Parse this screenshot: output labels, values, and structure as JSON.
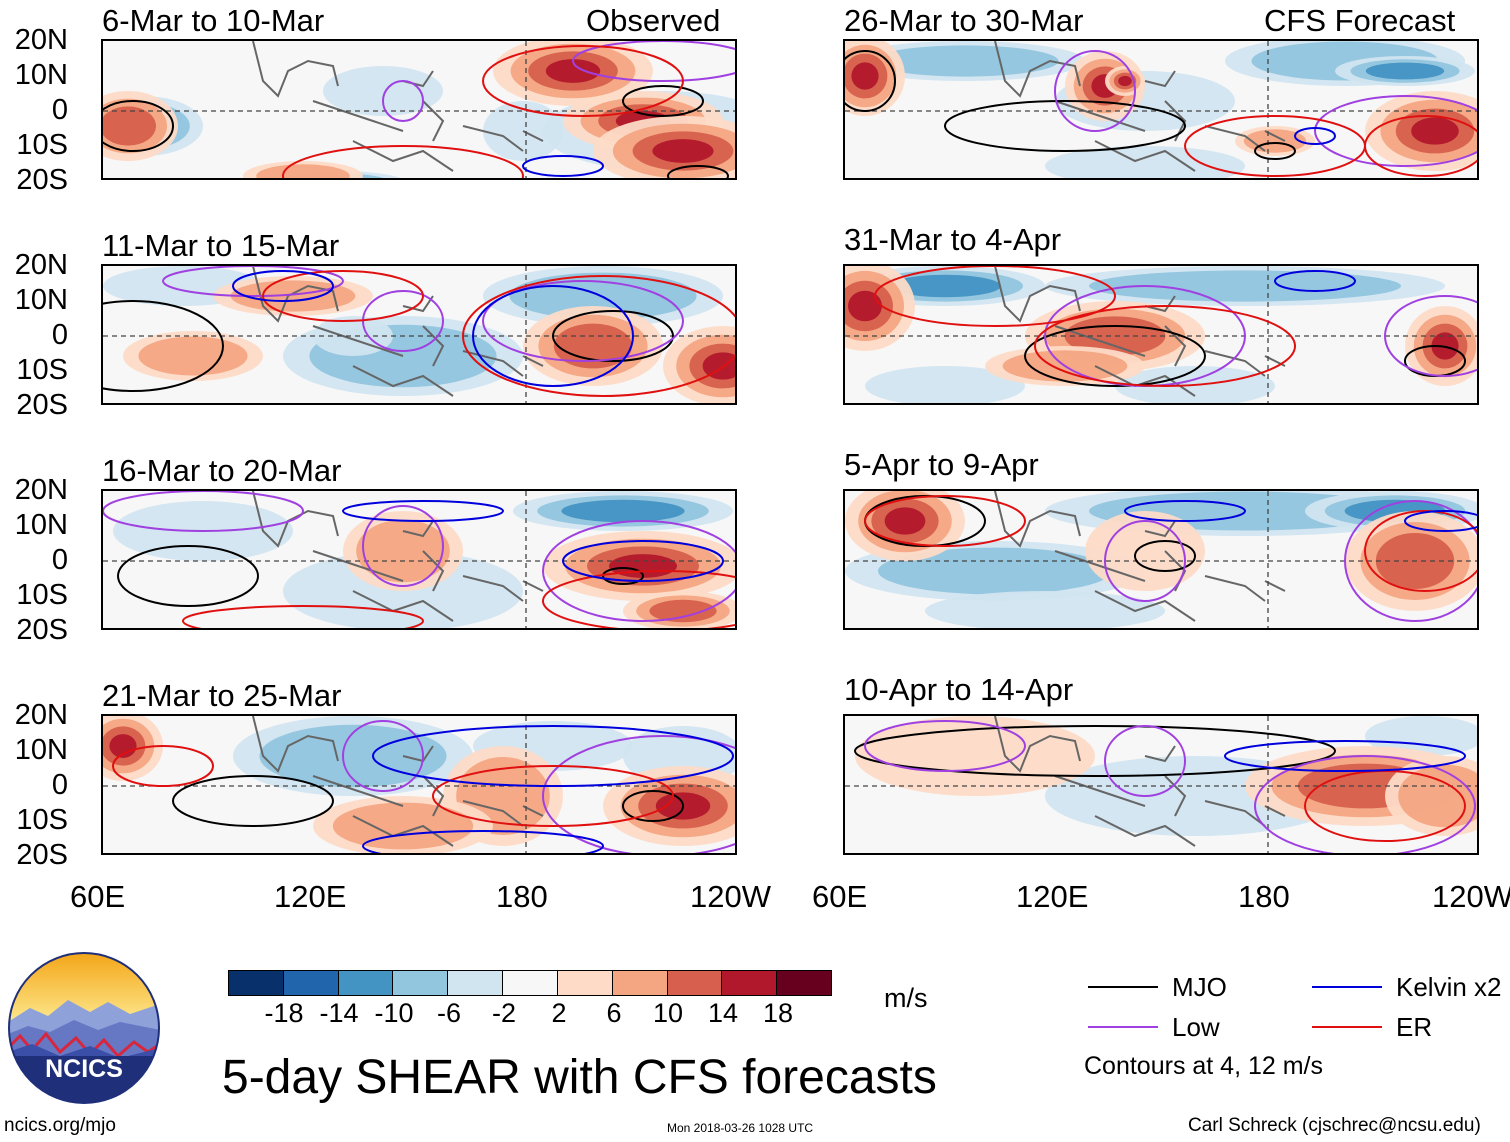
{
  "left_header": "Observed",
  "right_header": "CFS Forecast",
  "observed_panels": [
    {
      "title": "6-Mar to 10-Mar"
    },
    {
      "title": "11-Mar to 15-Mar"
    },
    {
      "title": "16-Mar to 20-Mar"
    },
    {
      "title": "21-Mar to 25-Mar"
    }
  ],
  "forecast_panels": [
    {
      "title": "26-Mar to 30-Mar"
    },
    {
      "title": "31-Mar to 4-Apr"
    },
    {
      "title": "5-Apr to 9-Apr"
    },
    {
      "title": "10-Apr to 14-Apr"
    }
  ],
  "lat_labels": [
    "20N",
    "10N",
    "0",
    "10S",
    "20S"
  ],
  "lon_labels": [
    "60E",
    "120E",
    "180",
    "120W"
  ],
  "colorbar": {
    "colors": [
      "#08306b",
      "#2166ac",
      "#4393c3",
      "#92c5de",
      "#d1e5f0",
      "#f7f7f7",
      "#fddbc7",
      "#f4a582",
      "#d6604d",
      "#b2182b",
      "#67001f"
    ],
    "labels": [
      "-18",
      "-14",
      "-10",
      "-6",
      "-2",
      "2",
      "6",
      "10",
      "14",
      "18"
    ],
    "units": "m/s"
  },
  "legend": {
    "items": [
      {
        "label": "MJO",
        "color": "#000000"
      },
      {
        "label": "Kelvin x2",
        "color": "#0000dd"
      },
      {
        "label": "Low",
        "color": "#a040e0"
      },
      {
        "label": "ER",
        "color": "#e01010"
      }
    ],
    "note": "Contours at 4, 12 m/s"
  },
  "title": "5-day SHEAR with CFS forecasts",
  "logo_text": "NCICS",
  "footer": {
    "url": "ncics.org/mjo",
    "timestamp": "Mon 2018-03-26 1028 UTC",
    "author": "Carl Schreck (cjschrec@ncsu.edu)"
  }
}
